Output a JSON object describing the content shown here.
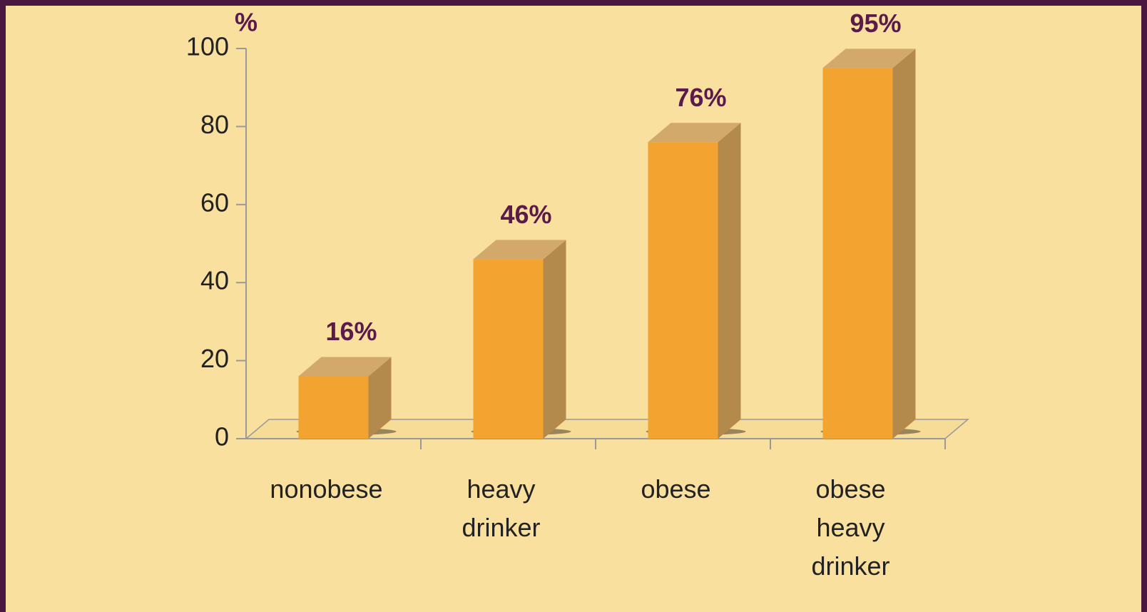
{
  "chart_data": {
    "type": "bar3d",
    "y_label": "%",
    "categories": [
      "nonobese",
      "heavy drinker",
      "obese",
      "obese heavy drinker"
    ],
    "values": [
      16,
      46,
      76,
      95
    ],
    "value_labels": [
      "16%",
      "46%",
      "76%",
      "95%"
    ],
    "color": "#f2a330",
    "ylim": [
      0,
      100
    ],
    "yticks": [
      0,
      20,
      40,
      60,
      80,
      100
    ]
  }
}
